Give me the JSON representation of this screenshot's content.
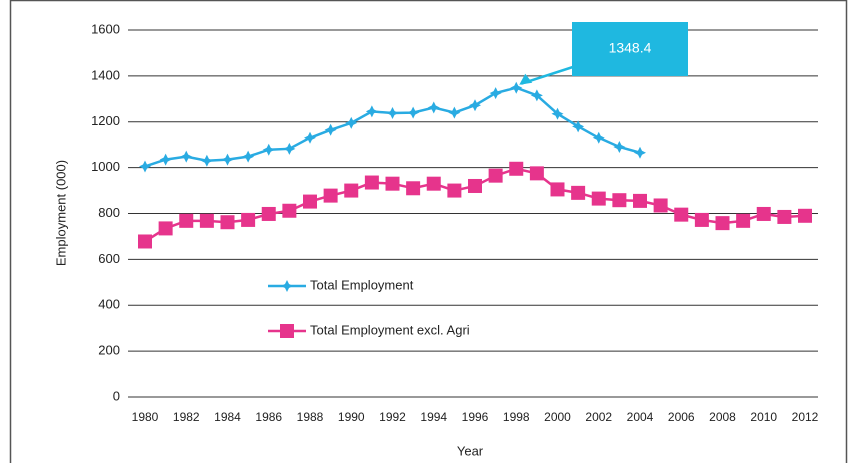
{
  "chart_data": {
    "type": "line",
    "x_label": "Year",
    "y_label": "Employment (000)",
    "x": [
      1980,
      1981,
      1982,
      1983,
      1984,
      1985,
      1986,
      1987,
      1988,
      1989,
      1990,
      1991,
      1992,
      1993,
      1994,
      1995,
      1996,
      1997,
      1998,
      1999,
      2000,
      2001,
      2002,
      2003,
      2004,
      2005,
      2006,
      2007,
      2008,
      2009,
      2010,
      2011,
      2012
    ],
    "series": [
      {
        "name": "Total Employment",
        "color": "#29abe2",
        "marker": "diamond",
        "values": [
          1005,
          1035,
          1048,
          1030,
          1035,
          1048,
          1078,
          1082,
          1130,
          1165,
          1195,
          1245,
          1238,
          1240,
          1262,
          1240,
          1272,
          1325,
          1348.4,
          1315,
          1235,
          1180,
          1130,
          1090,
          1065,
          null,
          null,
          null,
          null,
          null,
          null,
          null,
          null
        ]
      },
      {
        "name": "Total Employment excl. Agri",
        "color": "#e6348c",
        "marker": "square",
        "values": [
          678,
          735,
          768,
          768,
          762,
          772,
          798,
          812,
          852,
          878,
          900,
          935,
          930,
          910,
          930,
          900,
          920,
          965,
          995,
          975,
          905,
          890,
          865,
          858,
          855,
          835,
          795,
          772,
          758,
          768,
          798,
          785,
          790
        ]
      }
    ],
    "xlim": [
      1980,
      2012
    ],
    "xticks": [
      1980,
      1982,
      1984,
      1986,
      1988,
      1990,
      1992,
      1994,
      1996,
      1998,
      2000,
      2002,
      2004,
      2006,
      2008,
      2010,
      2012
    ],
    "ylim": [
      0,
      1600
    ],
    "yticks": [
      0,
      200,
      400,
      600,
      800,
      1000,
      1200,
      1400,
      1600
    ],
    "grid": true,
    "annotation": {
      "text": "1348.4",
      "x": 1998,
      "y": 1348.4,
      "color": "#1fb8e0"
    }
  }
}
